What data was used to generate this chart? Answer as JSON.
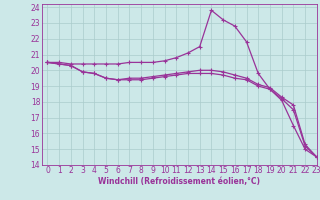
{
  "title": "",
  "xlabel": "Windchill (Refroidissement éolien,°C)",
  "ylabel": "",
  "background_color": "#cce8e8",
  "grid_color": "#aacccc",
  "line_color": "#993399",
  "spine_color": "#993399",
  "xlim": [
    -0.5,
    23
  ],
  "ylim": [
    14,
    24.2
  ],
  "yticks": [
    14,
    15,
    16,
    17,
    18,
    19,
    20,
    21,
    22,
    23,
    24
  ],
  "xticks": [
    0,
    1,
    2,
    3,
    4,
    5,
    6,
    7,
    8,
    9,
    10,
    11,
    12,
    13,
    14,
    15,
    16,
    17,
    18,
    19,
    20,
    21,
    22,
    23
  ],
  "series": [
    {
      "x": [
        0,
        1,
        2,
        3,
        4,
        5,
        6,
        7,
        8,
        9,
        10,
        11,
        12,
        13,
        14,
        15,
        16,
        17,
        18,
        19,
        20,
        21,
        22,
        23
      ],
      "y": [
        20.5,
        20.5,
        20.4,
        20.4,
        20.4,
        20.4,
        20.4,
        20.5,
        20.5,
        20.5,
        20.6,
        20.8,
        21.1,
        21.5,
        23.8,
        23.2,
        22.8,
        21.8,
        19.8,
        18.8,
        18.1,
        16.5,
        15.0,
        14.5
      ]
    },
    {
      "x": [
        0,
        1,
        2,
        3,
        4,
        5,
        6,
        7,
        8,
        9,
        10,
        11,
        12,
        13,
        14,
        15,
        16,
        17,
        18,
        19,
        20,
        21,
        22,
        23
      ],
      "y": [
        20.5,
        20.4,
        20.3,
        19.9,
        19.8,
        19.5,
        19.4,
        19.5,
        19.5,
        19.6,
        19.7,
        19.8,
        19.9,
        20.0,
        20.0,
        19.9,
        19.7,
        19.5,
        19.1,
        18.9,
        18.3,
        17.8,
        15.3,
        14.5
      ]
    },
    {
      "x": [
        0,
        1,
        2,
        3,
        4,
        5,
        6,
        7,
        8,
        9,
        10,
        11,
        12,
        13,
        14,
        15,
        16,
        17,
        18,
        19,
        20,
        21,
        22,
        23
      ],
      "y": [
        20.5,
        20.4,
        20.3,
        19.9,
        19.8,
        19.5,
        19.4,
        19.4,
        19.4,
        19.5,
        19.6,
        19.7,
        19.8,
        19.8,
        19.8,
        19.7,
        19.5,
        19.4,
        19.0,
        18.8,
        18.2,
        17.5,
        15.2,
        14.5
      ]
    }
  ],
  "tick_fontsize": 5.5,
  "xlabel_fontsize": 5.5,
  "marker_size": 3,
  "linewidth": 0.9
}
